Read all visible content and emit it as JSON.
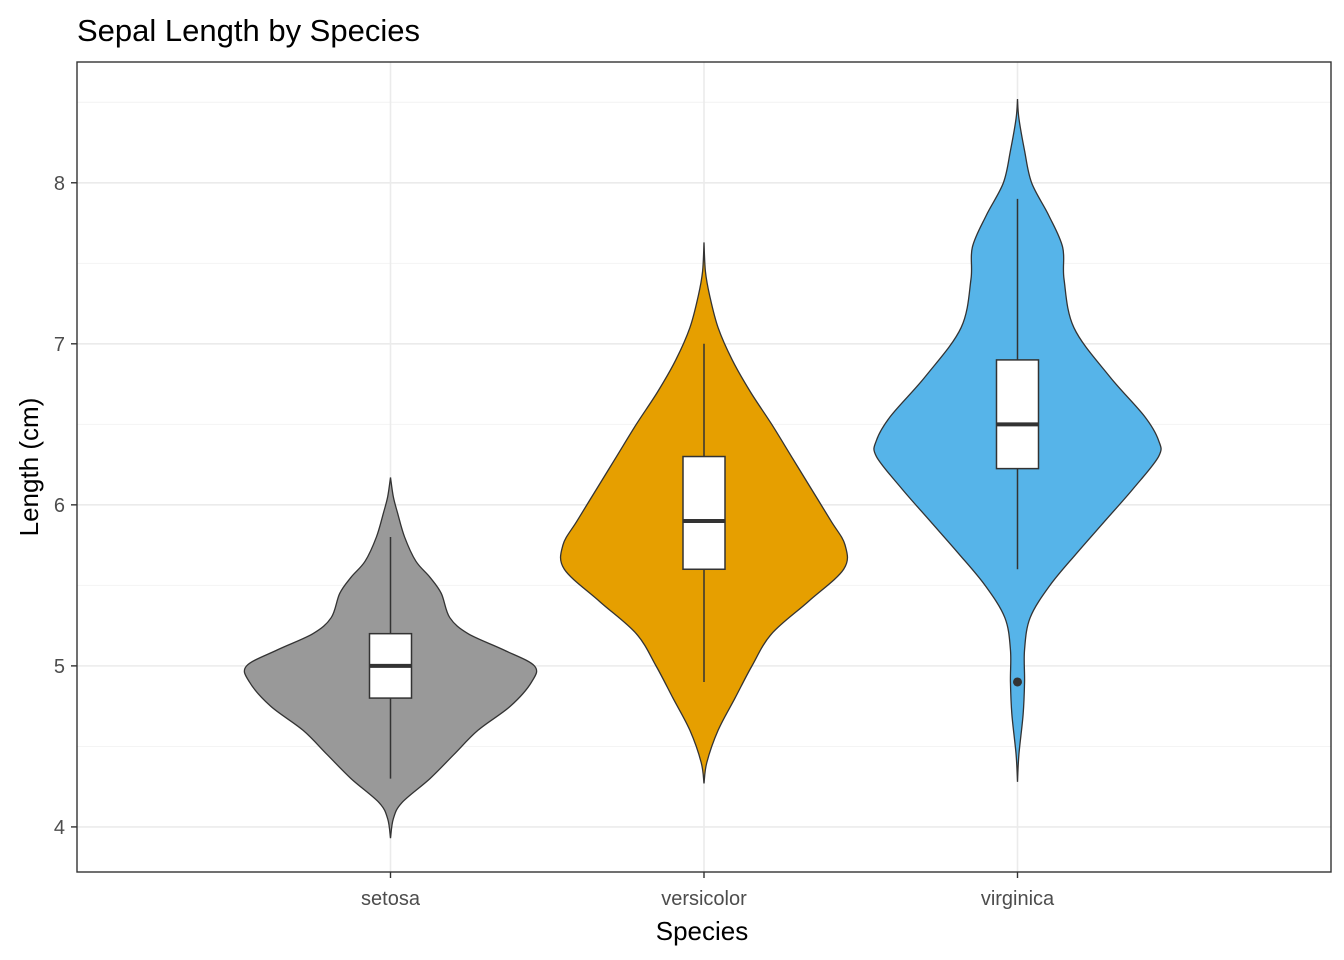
{
  "chart_data": {
    "type": "violin",
    "title": "Sepal Length  by Species",
    "xlabel": "Species",
    "ylabel": "Length (cm)",
    "categories": [
      "setosa",
      "versicolor",
      "virginica"
    ],
    "yticks": [
      4,
      5,
      6,
      7,
      8
    ],
    "ylim": [
      3.72,
      8.75
    ],
    "grid": true,
    "legend": "none",
    "series": [
      {
        "category": "setosa",
        "color": "#999999",
        "box": {
          "q1": 4.8,
          "median": 5.0,
          "q3": 5.2,
          "whisker_low": 4.3,
          "whisker_high": 5.8
        },
        "outliers": [],
        "violin_range": [
          3.93,
          6.17
        ],
        "density": [
          [
            3.93,
            0.0
          ],
          [
            4.05,
            0.02
          ],
          [
            4.15,
            0.08
          ],
          [
            4.3,
            0.28
          ],
          [
            4.45,
            0.45
          ],
          [
            4.6,
            0.62
          ],
          [
            4.75,
            0.85
          ],
          [
            4.9,
            1.0
          ],
          [
            5.0,
            1.02
          ],
          [
            5.1,
            0.8
          ],
          [
            5.2,
            0.55
          ],
          [
            5.3,
            0.42
          ],
          [
            5.45,
            0.36
          ],
          [
            5.55,
            0.28
          ],
          [
            5.65,
            0.18
          ],
          [
            5.8,
            0.1
          ],
          [
            5.95,
            0.05
          ],
          [
            6.05,
            0.02
          ],
          [
            6.17,
            0.0
          ]
        ]
      },
      {
        "category": "versicolor",
        "color": "#E69F00",
        "box": {
          "q1": 5.6,
          "median": 5.9,
          "q3": 6.3,
          "whisker_low": 4.9,
          "whisker_high": 7.0
        },
        "outliers": [],
        "violin_range": [
          4.27,
          7.63
        ],
        "density": [
          [
            4.27,
            0.0
          ],
          [
            4.4,
            0.02
          ],
          [
            4.6,
            0.1
          ],
          [
            4.8,
            0.22
          ],
          [
            5.0,
            0.34
          ],
          [
            5.2,
            0.48
          ],
          [
            5.4,
            0.74
          ],
          [
            5.6,
            0.99
          ],
          [
            5.75,
            1.0
          ],
          [
            5.9,
            0.9
          ],
          [
            6.1,
            0.76
          ],
          [
            6.3,
            0.62
          ],
          [
            6.5,
            0.48
          ],
          [
            6.7,
            0.33
          ],
          [
            6.9,
            0.2
          ],
          [
            7.1,
            0.1
          ],
          [
            7.3,
            0.04
          ],
          [
            7.45,
            0.01
          ],
          [
            7.63,
            0.0
          ]
        ]
      },
      {
        "category": "virginica",
        "color": "#56B4E9",
        "box": {
          "q1": 6.225,
          "median": 6.5,
          "q3": 6.9,
          "whisker_low": 5.6,
          "whisker_high": 7.9
        },
        "outliers": [
          4.9
        ],
        "violin_range": [
          4.28,
          8.52
        ],
        "density": [
          [
            4.28,
            0.0
          ],
          [
            4.45,
            0.01
          ],
          [
            4.7,
            0.04
          ],
          [
            4.9,
            0.05
          ],
          [
            5.1,
            0.05
          ],
          [
            5.3,
            0.09
          ],
          [
            5.5,
            0.23
          ],
          [
            5.7,
            0.42
          ],
          [
            5.9,
            0.62
          ],
          [
            6.1,
            0.82
          ],
          [
            6.3,
            1.0
          ],
          [
            6.4,
            1.0
          ],
          [
            6.55,
            0.9
          ],
          [
            6.8,
            0.65
          ],
          [
            7.1,
            0.4
          ],
          [
            7.4,
            0.33
          ],
          [
            7.6,
            0.32
          ],
          [
            7.8,
            0.22
          ],
          [
            8.0,
            0.1
          ],
          [
            8.2,
            0.05
          ],
          [
            8.4,
            0.01
          ],
          [
            8.52,
            0.0
          ]
        ]
      }
    ]
  }
}
